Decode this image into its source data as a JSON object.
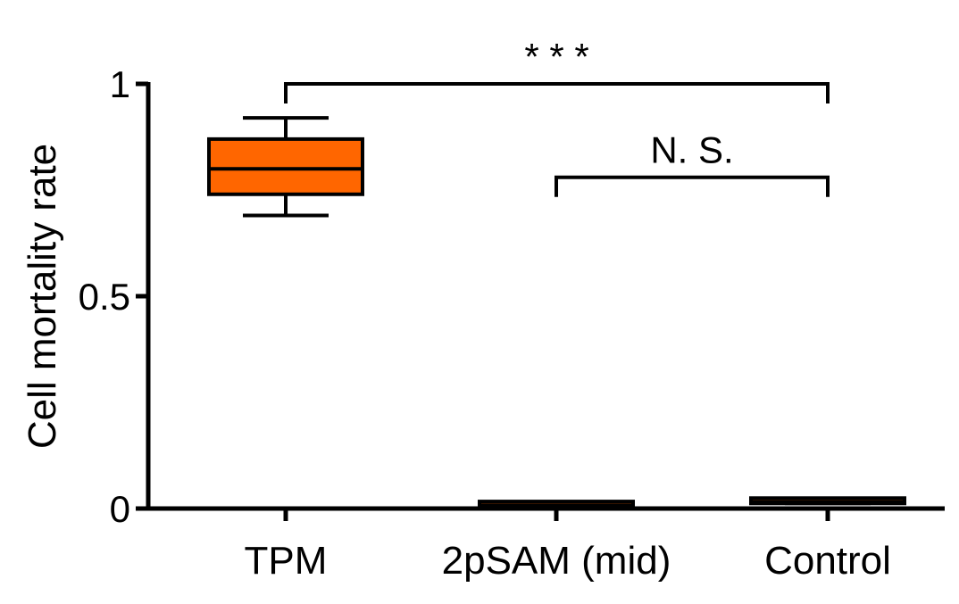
{
  "chart_data": {
    "type": "box",
    "ylabel": "Cell mortality rate",
    "ylim": [
      0,
      1
    ],
    "yticks": [
      {
        "value": 0,
        "label": "0"
      },
      {
        "value": 0.5,
        "label": "0.5"
      },
      {
        "value": 1,
        "label": "1"
      }
    ],
    "categories": [
      "TPM",
      "2pSAM (mid)",
      "Control"
    ],
    "boxes": [
      {
        "category": "TPM",
        "min": 0.69,
        "q1": 0.74,
        "median": 0.8,
        "q3": 0.87,
        "max": 0.92,
        "color": "#ff6600"
      },
      {
        "category": "2pSAM (mid)",
        "min": 0.004,
        "q1": 0.004,
        "median": 0.008,
        "q3": 0.01,
        "max": 0.012,
        "color": "#ff6600"
      },
      {
        "category": "Control",
        "min": 0.012,
        "q1": 0.012,
        "median": 0.016,
        "q3": 0.018,
        "max": 0.02,
        "color": "#ff6600"
      }
    ],
    "significance": [
      {
        "from": "TPM",
        "to": "Control",
        "y": 1.0,
        "label": "* * *"
      },
      {
        "from": "2pSAM (mid)",
        "to": "Control",
        "y": 0.78,
        "label": "N. S."
      }
    ]
  }
}
